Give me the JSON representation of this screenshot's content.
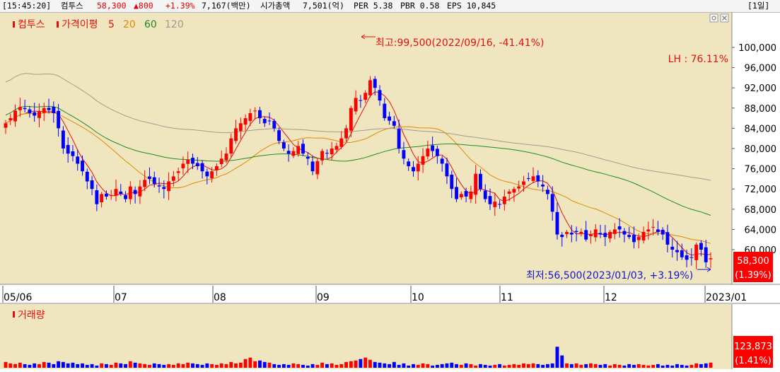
{
  "header": {
    "time": "[15:45:20]",
    "name": "컴투스",
    "price": "58,300",
    "change": "▲800",
    "change_pct": "+1.39%",
    "volume": "7,167(백만)",
    "market_cap_label": "시가총액",
    "market_cap": "7,501(억)",
    "per": "PER 5.38",
    "pbr": "PBR 0.58",
    "eps": "EPS 10,845",
    "period_button": "[1일]"
  },
  "legend": {
    "stock": "컴투스",
    "ma_title": "가격이평",
    "ma": [
      "5",
      "20",
      "60",
      "120"
    ],
    "colors": {
      "ma5": "#e01010",
      "ma20": "#e08a00",
      "ma60": "#1e8c1e",
      "ma120": "#a09a90"
    }
  },
  "annotations": {
    "high": "최고:99,500(2022/09/16, -41.41%)",
    "low": "최저:56,500(2023/01/03, +3.19%)",
    "lh": "LH :  76.11%",
    "price_box": "58,300",
    "price_pct": "(1.39%)",
    "volume_box": "123,873",
    "volume_pct": "(1.41%)"
  },
  "volume_panel": {
    "title": "거래량"
  },
  "colors": {
    "up": "#ff0000",
    "down": "#0000ff",
    "panel_bg": "#efe6c0",
    "label_box": "#ff0000"
  },
  "chart_data": {
    "type": "candlestick",
    "x_ticks": [
      "05/06",
      "07",
      "08",
      "09",
      "10",
      "11",
      "12",
      "2023/01"
    ],
    "y_ticks": [
      "60,000",
      "64,000",
      "68,000",
      "72,000",
      "76,000",
      "80,000",
      "84,000",
      "88,000",
      "92,000",
      "96,000",
      "100,000"
    ],
    "ylim": [
      55500,
      102300
    ],
    "high_point": {
      "date": "2022/09/16",
      "value": 99500
    },
    "low_point": {
      "date": "2023/01/03",
      "value": 56500
    },
    "close_series": [
      85000,
      86000,
      87500,
      88200,
      87800,
      87000,
      86500,
      87300,
      88000,
      87600,
      87000,
      84000,
      80000,
      79000,
      78500,
      77000,
      75500,
      73500,
      72000,
      69000,
      71000,
      70500,
      70800,
      72000,
      71000,
      70000,
      72500,
      71000,
      72500,
      73800,
      74000,
      73000,
      72500,
      72000,
      73500,
      74500,
      75500,
      77000,
      77800,
      77000,
      76500,
      75500,
      74500,
      75500,
      76500,
      78000,
      79000,
      82000,
      84000,
      85000,
      86000,
      87000,
      87500,
      86000,
      85000,
      85500,
      84000,
      81500,
      80000,
      79000,
      79500,
      80500,
      79000,
      78000,
      75500,
      77500,
      79500,
      79000,
      80000,
      80500,
      82000,
      84000,
      88000,
      90000,
      89500,
      91000,
      93500,
      92000,
      89500,
      86000,
      85500,
      84500,
      80000,
      78000,
      76500,
      75500,
      77000,
      78500,
      80000,
      79500,
      78500,
      77000,
      74500,
      72000,
      70000,
      71000,
      70500,
      71500,
      75000,
      72000,
      70000,
      69000,
      69500,
      69000,
      70500,
      71500,
      72000,
      72500,
      73500,
      74000,
      74500,
      73500,
      72500,
      71000,
      67500,
      63000,
      62500,
      63500,
      63000,
      63500,
      63500,
      62000,
      63000,
      64000,
      63000,
      62500,
      63500,
      64000,
      64000,
      63000,
      62500,
      61500,
      62500,
      63500,
      64000,
      64500,
      63500,
      63000,
      61000,
      60000,
      59500,
      58500,
      58000,
      58500,
      61000,
      60000,
      57500,
      58300
    ],
    "volume_ylim": [
      0,
      80000
    ],
    "volume_series": [
      8000,
      6000,
      5000,
      7000,
      5000,
      4000,
      6000,
      5000,
      8000,
      7000,
      5000,
      9000,
      8000,
      6000,
      7000,
      5000,
      6000,
      4000,
      5000,
      3000,
      6000,
      5000,
      4000,
      7000,
      6000,
      5000,
      9000,
      7000,
      6000,
      5000,
      4000,
      6000,
      5000,
      4000,
      5000,
      4000,
      6000,
      5000,
      7000,
      6000,
      5000,
      4000,
      6000,
      5000,
      4000,
      6000,
      5000,
      8000,
      6000,
      7000,
      12000,
      14000,
      9000,
      10000,
      8000,
      7000,
      5000,
      4000,
      5000,
      4000,
      6000,
      5000,
      4000,
      3000,
      5000,
      4000,
      7000,
      5000,
      6000,
      4000,
      5000,
      8000,
      9000,
      10000,
      12000,
      14000,
      11000,
      8000,
      7000,
      6000,
      5000,
      8000,
      4000,
      6000,
      3000,
      5000,
      4000,
      6000,
      5000,
      3000,
      4000,
      5000,
      6000,
      7000,
      5000,
      4000,
      6000,
      5000,
      3000,
      5000,
      4000,
      3000,
      4000,
      5000,
      3000,
      4000,
      5000,
      4000,
      6000,
      5000,
      6000,
      5000,
      4000,
      5000,
      6000,
      29000,
      17000,
      6000,
      5000,
      6000,
      4000,
      5000,
      6000,
      5000,
      4000,
      5000,
      3000,
      5000,
      4000,
      3000,
      5000,
      4000,
      5000,
      4000,
      3000,
      4000,
      5000,
      3000,
      4000,
      3000,
      5000,
      4000,
      3000,
      4000,
      6000,
      5000,
      6000,
      7000
    ]
  }
}
